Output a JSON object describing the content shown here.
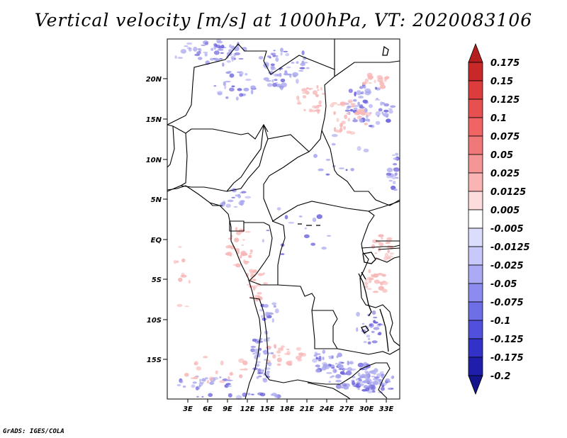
{
  "title": "Vertical velocity [m/s] at 1000hPa, VT: 2020083106",
  "credit": "GrADS: IGES/COLA",
  "map": {
    "lon_range": [
      0,
      35
    ],
    "lat_range": [
      -20,
      24
    ],
    "lon_labels": [
      "3E",
      "6E",
      "9E",
      "12E",
      "15E",
      "18E",
      "21E",
      "24E",
      "27E",
      "30E",
      "33E"
    ],
    "lat_labels": [
      "20N",
      "15N",
      "10N",
      "5N",
      "EQ",
      "5S",
      "10S",
      "15S"
    ],
    "fill_colors": {
      "positive": "#f7b6b6",
      "negative": "#aaa8ee",
      "strong_negative": "#6e66dc"
    }
  },
  "colorbar": {
    "labels": [
      "0.175",
      "0.15",
      "0.125",
      "0.1",
      "0.075",
      "0.05",
      "0.025",
      "0.0125",
      "0.005",
      "-0.005",
      "-0.0125",
      "-0.025",
      "-0.05",
      "-0.075",
      "-0.1",
      "-0.125",
      "-0.175",
      "-0.2"
    ],
    "colors": [
      "#b41e1e",
      "#c82828",
      "#dc3c3c",
      "#e65050",
      "#f06464",
      "#f07878",
      "#f59696",
      "#fab4b4",
      "#fcdcdc",
      "#ffffff",
      "#dcdcfc",
      "#c8c8fa",
      "#aaaaf5",
      "#8c8cf0",
      "#6e6ee6",
      "#5050dc",
      "#3232c8",
      "#1e1eaa",
      "#14148c"
    ]
  }
}
